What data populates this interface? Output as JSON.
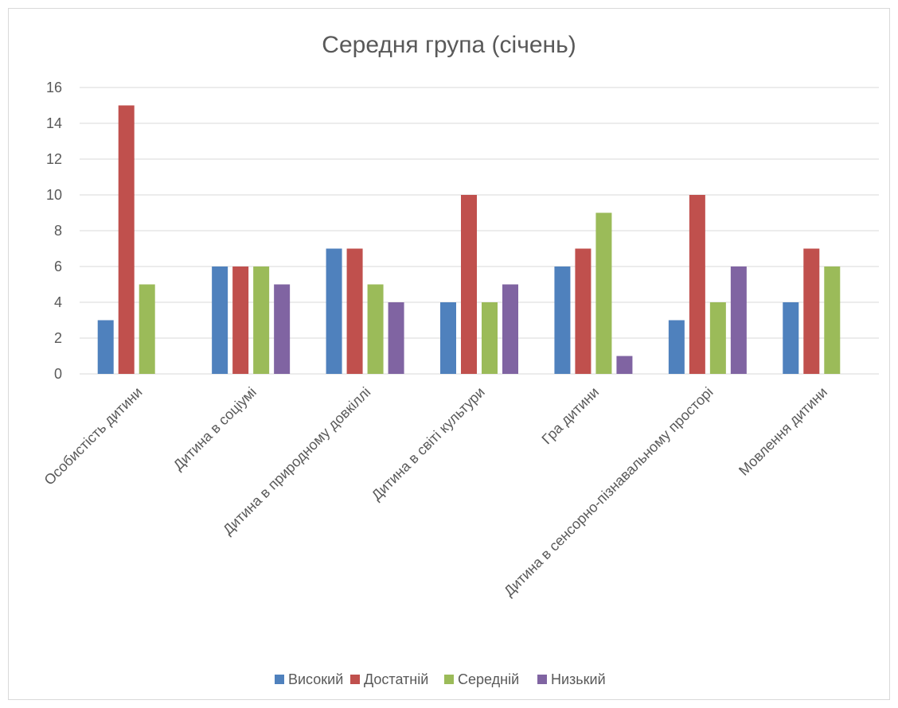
{
  "chart_data": {
    "type": "bar",
    "title": "Середня група (січень)",
    "xlabel": "",
    "ylabel": "",
    "ylim": [
      0,
      16
    ],
    "yticks": [
      0,
      2,
      4,
      6,
      8,
      10,
      12,
      14,
      16
    ],
    "grid": true,
    "legend_position": "bottom",
    "categories": [
      "Особистість дитини",
      "Дитина в соціумі",
      "Дитина в природному довкіллі",
      "Дитина в світі культури",
      "Гра дитини",
      "Дитина в сенсорно-пізнавальному просторі",
      "Мовлення дитини"
    ],
    "series": [
      {
        "name": "Високий",
        "color": "#4f81bd",
        "values": [
          3,
          6,
          7,
          4,
          6,
          3,
          4
        ]
      },
      {
        "name": "Достатній",
        "color": "#c0504d",
        "values": [
          15,
          6,
          7,
          10,
          7,
          10,
          7
        ]
      },
      {
        "name": "Середній",
        "color": "#9bbb59",
        "values": [
          5,
          6,
          5,
          4,
          9,
          4,
          6
        ]
      },
      {
        "name": "Низький",
        "color": "#8064a2",
        "values": [
          null,
          5,
          4,
          5,
          1,
          6,
          null
        ]
      }
    ]
  }
}
